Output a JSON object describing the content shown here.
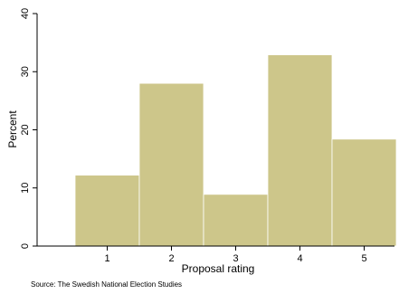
{
  "chart_data": {
    "type": "bar",
    "categories": [
      "1",
      "2",
      "3",
      "4",
      "5"
    ],
    "values": [
      12.2,
      28.0,
      8.9,
      32.9,
      18.4
    ],
    "xlabel": "Proposal rating",
    "ylabel": "Percent",
    "ylim": [
      0,
      40
    ],
    "yticks": [
      "0",
      "10",
      "20",
      "30",
      "40"
    ],
    "note": "Source: The Swedish National Election Studies",
    "grid": false,
    "legend": "none",
    "colors": {
      "bar": "#cdc68a",
      "bar_edge": "#ffffff",
      "background": "#ffffff",
      "axis": "#000000"
    }
  }
}
